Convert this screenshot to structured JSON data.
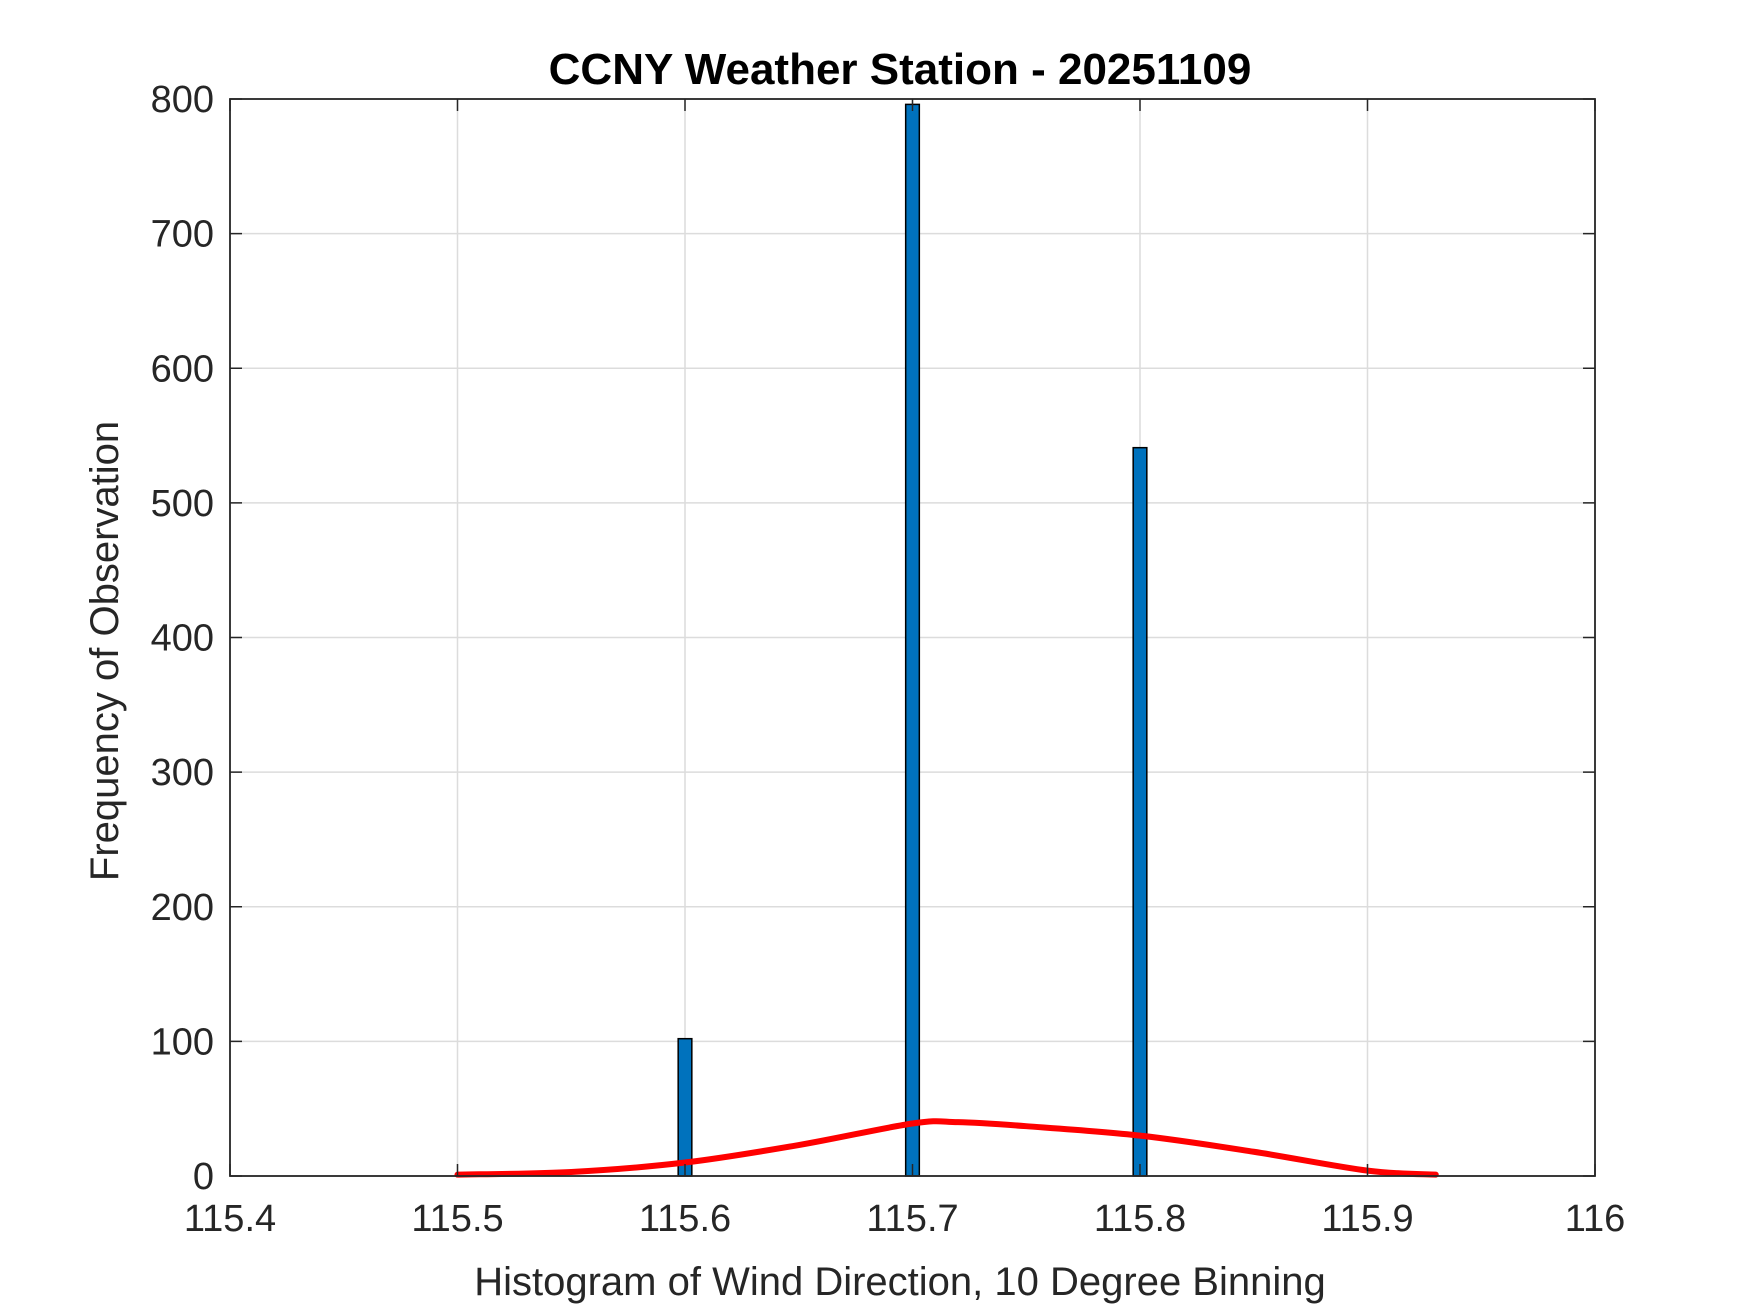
{
  "colors": {
    "bar_fill": "#0072BD",
    "bar_edge": "#000000",
    "fit_line": "#FF0000",
    "grid": "#DCDCDC",
    "axes": "#262626",
    "background": "#FFFFFF"
  },
  "chart_data": {
    "type": "bar",
    "title": "CCNY Weather Station - 20251109",
    "xlabel": "Histogram of Wind Direction, 10 Degree Binning",
    "ylabel": "Frequency of Observation",
    "xlim": [
      115.4,
      116.0
    ],
    "ylim": [
      0,
      800
    ],
    "xticks": [
      "115.4",
      "115.5",
      "115.6",
      "115.7",
      "115.8",
      "115.9",
      "116"
    ],
    "yticks": [
      "0",
      "100",
      "200",
      "300",
      "400",
      "500",
      "600",
      "700",
      "800"
    ],
    "grid": true,
    "bar_width": 0.006,
    "bars": [
      {
        "x": 115.6,
        "value": 102
      },
      {
        "x": 115.7,
        "value": 796
      },
      {
        "x": 115.8,
        "value": 541
      }
    ],
    "series": [
      {
        "type": "line",
        "x": [
          115.5,
          115.55,
          115.6,
          115.65,
          115.7,
          115.72,
          115.75,
          115.8,
          115.85,
          115.9,
          115.93
        ],
        "values": [
          1,
          3,
          10,
          23,
          39,
          40,
          37,
          30,
          18,
          4,
          1
        ]
      }
    ]
  }
}
